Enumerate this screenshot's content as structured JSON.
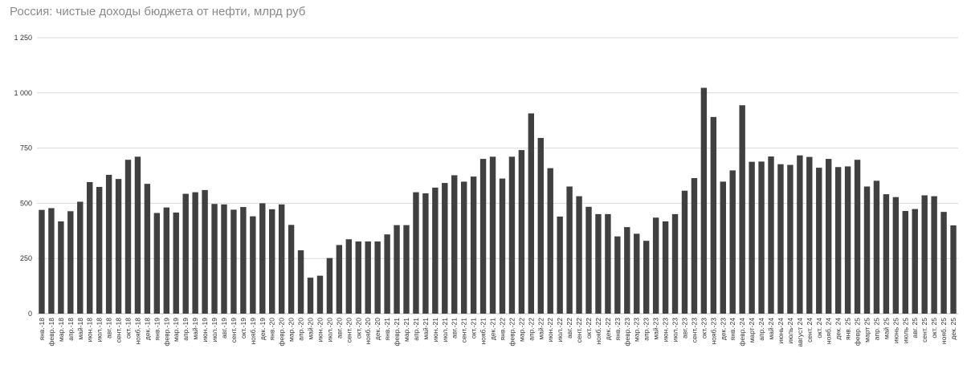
{
  "chart_data": {
    "type": "bar",
    "title": "Россия: чистые доходы бюджета от нефти, млрд руб",
    "xlabel": "",
    "ylabel": "",
    "ylim": [
      0,
      1250
    ],
    "yticks": [
      "0",
      "250",
      "500",
      "750",
      "1 000",
      "1 250"
    ],
    "ytick_values": [
      0,
      250,
      500,
      750,
      1000,
      1250
    ],
    "grid": true,
    "legend": "none",
    "bar_color": "#404040",
    "categories": [
      "янв.-18",
      "февр.-18",
      "мар.-18",
      "апр.-18",
      "май-18",
      "июн.-18",
      "июл.-18",
      "авг.-18",
      "сент.-18",
      "окт.-18",
      "нояб.-18",
      "дек.-18",
      "янв.-19",
      "февр.-19",
      "мар.-19",
      "апр.-19",
      "май-19",
      "июн.-19",
      "июл.-19",
      "авг.-19",
      "сент.-19",
      "окт.-19",
      "нояб.-19",
      "дек.-19",
      "янв.-20",
      "февр.-20",
      "мар.-20",
      "апр.-20",
      "май-20",
      "июн.-20",
      "июл.-20",
      "авг.-20",
      "сент.-20",
      "окт.-20",
      "нояб.-20",
      "дек.-20",
      "янв.-21",
      "февр.-21",
      "мар.-21",
      "апр.-21",
      "май-21",
      "июн.-21",
      "июл.-21",
      "авг.-21",
      "сент.-21",
      "окт.-21",
      "нояб.-21",
      "дек.-21",
      "янв.-22",
      "февр.-22",
      "мар.-22",
      "апр.-22",
      "май-22",
      "июн.-22",
      "июл.-22",
      "авг.-22",
      "сент.-22",
      "окт.-22",
      "нояб.-22",
      "дек.-22",
      "янв.-23",
      "февр.-23",
      "мар.-23",
      "апр.-23",
      "май-23",
      "июн.-23",
      "июл.-23",
      "авг.-23",
      "сент.-23",
      "окт.-23",
      "нояб.-23",
      "дек.-23",
      "янв.-24",
      "февр.-24",
      "март-24",
      "апр.-24",
      "май-24",
      "июнь-24",
      "июль-24",
      "август 24",
      "сент. 24",
      "окт. 24",
      "нояб. 24",
      "дек. 24",
      "янв. 25",
      "февр. 25",
      "март 25",
      "апр. 25",
      "май 25",
      "июнь 25",
      "июль 25",
      "авг. 25",
      "сент. 25",
      "окт. 25",
      "нояб. 25",
      "дек. 25"
    ],
    "values": [
      470,
      478,
      418,
      464,
      507,
      596,
      574,
      629,
      610,
      697,
      711,
      588,
      456,
      481,
      458,
      543,
      550,
      560,
      497,
      495,
      471,
      483,
      441,
      500,
      473,
      495,
      402,
      287,
      163,
      172,
      252,
      311,
      337,
      327,
      327,
      327,
      359,
      401,
      401,
      550,
      545,
      571,
      592,
      627,
      598,
      621,
      701,
      711,
      612,
      711,
      741,
      907,
      796,
      659,
      440,
      576,
      532,
      484,
      451,
      451,
      350,
      392,
      362,
      330,
      435,
      418,
      451,
      557,
      614,
      1023,
      891,
      598,
      649,
      944,
      688,
      689,
      712,
      677,
      674,
      717,
      710,
      661,
      701,
      664,
      667,
      697,
      576,
      602,
      541,
      528,
      465,
      474,
      536,
      532,
      461,
      400
    ]
  }
}
